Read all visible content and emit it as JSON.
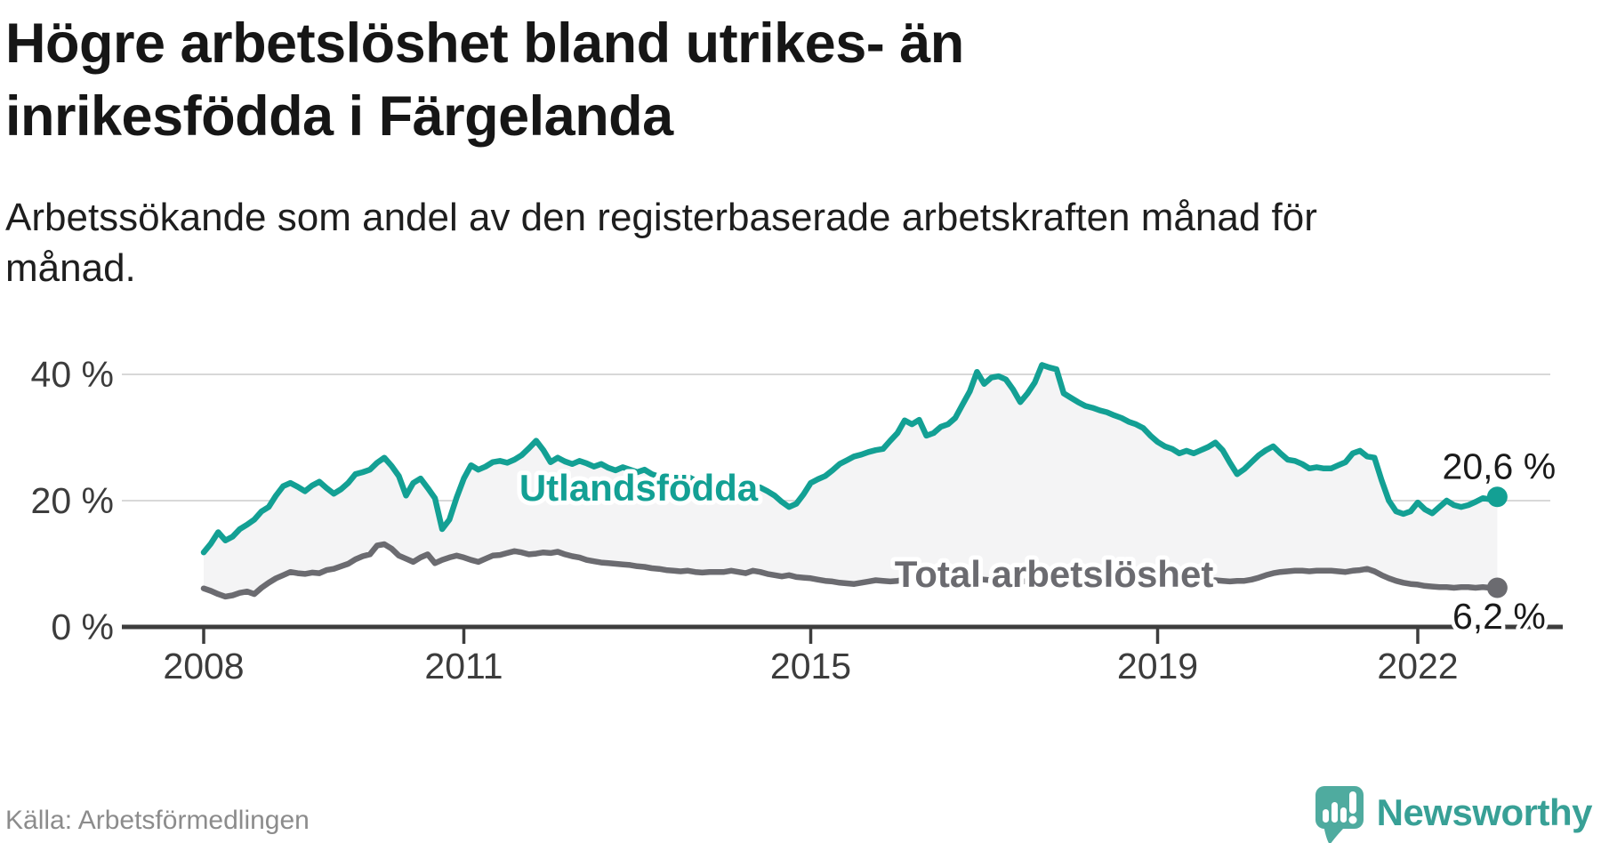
{
  "header": {
    "title_line1": "Högre arbetslöshet bland utrikes- än",
    "title_line2": "inrikesfödda i Färgelanda",
    "subtitle_line1": "Arbetssökande som andel av den registerbaserade arbetskraften månad för",
    "subtitle_line2": "månad."
  },
  "footer": {
    "source": "Källa: Arbetsförmedlingen",
    "brand": "Newsworthy"
  },
  "colors": {
    "teal_line": "#13a094",
    "gray_line": "#6b6b70",
    "area_fill": "#f4f4f5",
    "gridline": "#d8d8d8",
    "axis": "#3d3d3d",
    "axis_text": "#3c3c3c",
    "end_label_text": "#1a1a1a",
    "logo_icon": "#4fab9f",
    "logo_text": "#38a096"
  },
  "chart_data": {
    "type": "line",
    "title": "",
    "xlabel": "",
    "ylabel": "",
    "x_unit": "months from 2008-01 to 2022-12",
    "ylim": [
      0,
      44
    ],
    "grid": "horizontal",
    "area_fill_between_series": true,
    "x_ticks": [
      {
        "label": "2008",
        "year": 2008
      },
      {
        "label": "2011",
        "year": 2011
      },
      {
        "label": "2015",
        "year": 2015
      },
      {
        "label": "2019",
        "year": 2019
      },
      {
        "label": "2022",
        "year": 2022
      }
    ],
    "y_ticks": [
      {
        "label": "0 %",
        "value": 0
      },
      {
        "label": "20 %",
        "value": 20
      },
      {
        "label": "40 %",
        "value": 40
      }
    ],
    "series": [
      {
        "name": "Utlandsfödda",
        "color": "#13a094",
        "end_value": 20.6,
        "end_label": "20,6 %",
        "values": [
          11.8,
          13.2,
          15.0,
          13.7,
          14.3,
          15.5,
          16.2,
          17.0,
          18.3,
          19.0,
          20.8,
          22.3,
          22.8,
          22.2,
          21.5,
          22.4,
          23.0,
          22.0,
          21.1,
          21.8,
          22.8,
          24.2,
          24.5,
          24.9,
          26.0,
          26.8,
          25.5,
          23.9,
          20.8,
          22.8,
          23.5,
          22.0,
          20.4,
          15.5,
          17.0,
          20.5,
          23.5,
          25.6,
          24.9,
          25.4,
          26.1,
          26.3,
          26.0,
          26.5,
          27.2,
          28.3,
          29.5,
          28.0,
          26.1,
          26.8,
          26.2,
          25.8,
          26.3,
          25.9,
          25.4,
          25.8,
          25.2,
          24.8,
          25.3,
          24.9,
          24.5,
          24.9,
          24.2,
          23.8,
          24.3,
          23.9,
          23.4,
          23.8,
          23.2,
          22.8,
          23.3,
          22.9,
          22.5,
          22.9,
          22.3,
          21.9,
          22.2,
          22.1,
          21.5,
          20.8,
          19.8,
          19.0,
          19.5,
          21.0,
          22.8,
          23.4,
          23.9,
          24.8,
          25.8,
          26.4,
          27.0,
          27.3,
          27.7,
          28.0,
          28.2,
          29.5,
          30.7,
          32.7,
          32.1,
          32.8,
          30.3,
          30.7,
          31.7,
          32.1,
          33.1,
          35.2,
          37.3,
          40.4,
          38.5,
          39.5,
          39.7,
          39.2,
          37.6,
          35.6,
          37.0,
          38.7,
          41.5,
          41.1,
          40.8,
          37.0,
          36.3,
          35.6,
          35.0,
          34.7,
          34.3,
          34.0,
          33.5,
          33.1,
          32.5,
          32.1,
          31.5,
          30.3,
          29.3,
          28.6,
          28.2,
          27.5,
          27.9,
          27.5,
          28.0,
          28.5,
          29.2,
          28.0,
          26.0,
          24.2,
          25.0,
          26.1,
          27.2,
          28.0,
          28.6,
          27.5,
          26.5,
          26.3,
          25.8,
          25.1,
          25.3,
          25.1,
          25.1,
          25.6,
          26.1,
          27.5,
          27.9,
          27.0,
          26.8,
          23.2,
          20.0,
          18.3,
          17.9,
          18.3,
          19.7,
          18.6,
          18.0,
          19.0,
          20.0,
          19.3,
          19.0,
          19.3,
          19.8,
          20.4,
          20.2,
          20.6
        ]
      },
      {
        "name": "Total arbetslöshet",
        "color": "#6b6b70",
        "end_value": 6.2,
        "end_label": "6,2 %",
        "values": [
          6.1,
          5.7,
          5.2,
          4.8,
          5.0,
          5.4,
          5.6,
          5.2,
          6.2,
          7.0,
          7.7,
          8.2,
          8.7,
          8.5,
          8.4,
          8.6,
          8.5,
          9.0,
          9.2,
          9.6,
          10.0,
          10.7,
          11.2,
          11.5,
          12.9,
          13.1,
          12.4,
          11.3,
          10.8,
          10.3,
          11.0,
          11.5,
          10.1,
          10.6,
          11.0,
          11.3,
          11.0,
          10.6,
          10.3,
          10.8,
          11.3,
          11.4,
          11.7,
          12.0,
          11.8,
          11.5,
          11.6,
          11.8,
          11.7,
          11.9,
          11.5,
          11.2,
          11.0,
          10.6,
          10.4,
          10.2,
          10.1,
          10.0,
          9.9,
          9.8,
          9.6,
          9.5,
          9.3,
          9.2,
          9.0,
          8.9,
          8.8,
          8.9,
          8.7,
          8.6,
          8.7,
          8.7,
          8.7,
          8.9,
          8.7,
          8.5,
          8.9,
          8.7,
          8.4,
          8.2,
          8.0,
          8.2,
          7.9,
          7.8,
          7.7,
          7.5,
          7.3,
          7.2,
          7.0,
          6.9,
          6.8,
          7.0,
          7.2,
          7.4,
          7.3,
          7.2,
          7.3,
          7.5,
          7.4,
          7.2,
          7.0,
          6.9,
          7.0,
          7.2,
          7.3,
          7.4,
          7.5,
          7.6,
          7.5,
          7.4,
          7.3,
          7.2,
          7.0,
          7.1,
          7.3,
          7.5,
          7.7,
          7.6,
          7.5,
          7.4,
          7.3,
          7.2,
          7.0,
          6.9,
          6.8,
          6.9,
          7.0,
          7.1,
          7.0,
          6.9,
          6.8,
          6.9,
          7.0,
          7.1,
          7.2,
          7.1,
          7.0,
          7.1,
          7.2,
          7.3,
          7.4,
          7.3,
          7.2,
          7.3,
          7.3,
          7.5,
          7.8,
          8.2,
          8.5,
          8.7,
          8.8,
          8.9,
          8.9,
          8.8,
          8.9,
          8.9,
          8.9,
          8.8,
          8.7,
          8.9,
          9.0,
          9.2,
          8.8,
          8.2,
          7.7,
          7.3,
          7.0,
          6.8,
          6.7,
          6.5,
          6.4,
          6.3,
          6.3,
          6.2,
          6.3,
          6.3,
          6.2,
          6.3,
          6.2,
          6.2
        ]
      }
    ],
    "legend_position": "inline-labels-on-lines"
  }
}
